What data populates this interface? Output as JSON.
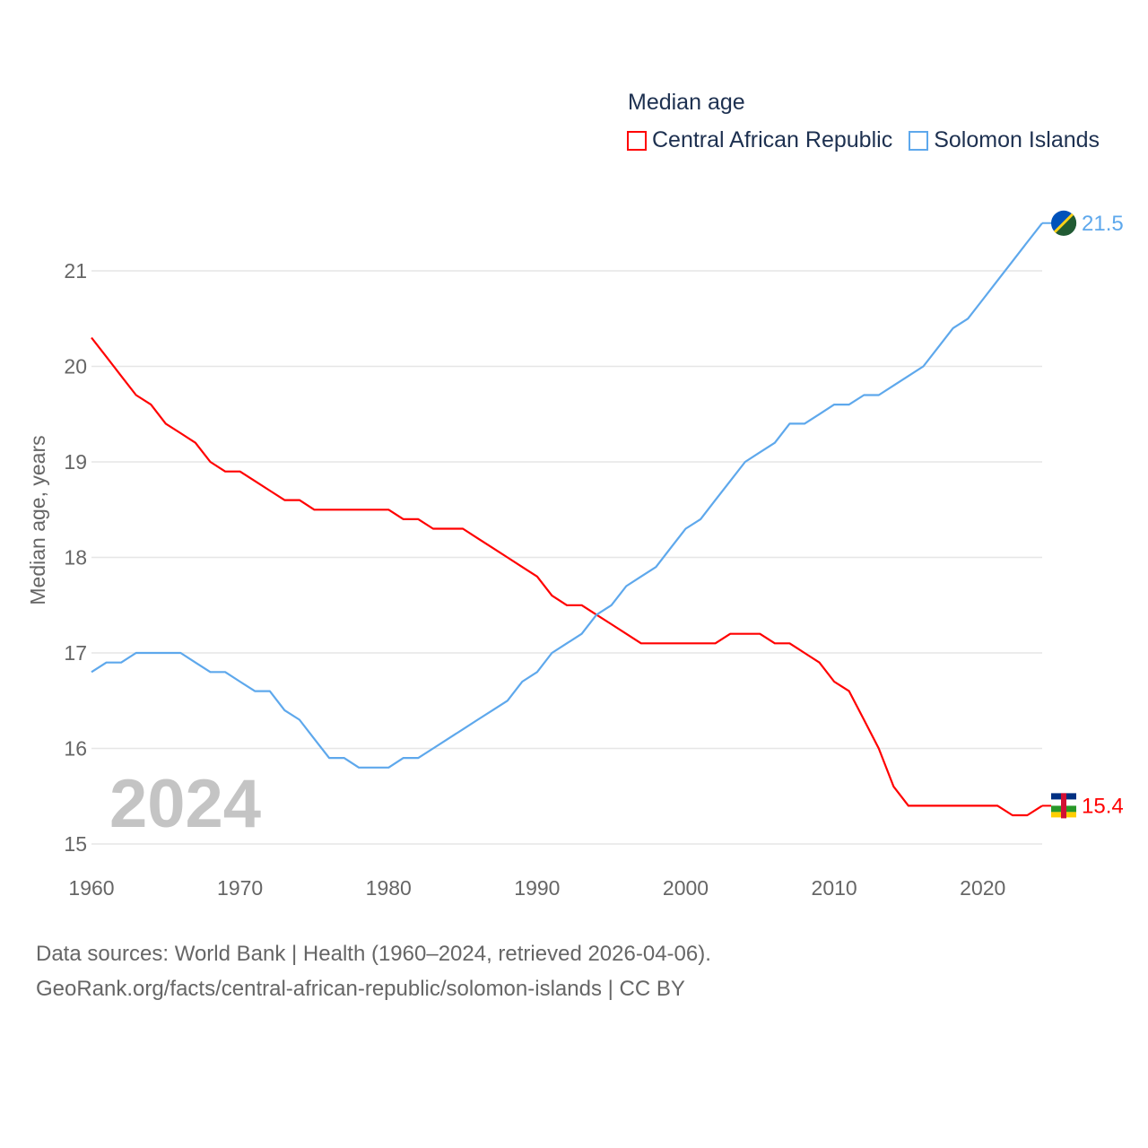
{
  "chart_data": {
    "type": "line",
    "title": "Median age",
    "xlabel": "",
    "ylabel": "Median age, years",
    "xlim": [
      1960,
      2024
    ],
    "ylim": [
      15,
      21.5
    ],
    "x_ticks": [
      "1960",
      "1970",
      "1980",
      "1990",
      "2000",
      "2010",
      "2020"
    ],
    "y_ticks": [
      "15",
      "16",
      "17",
      "18",
      "19",
      "20",
      "21"
    ],
    "grid": true,
    "legend_position": "top-right",
    "year_watermark": "2024",
    "x": [
      1960,
      1961,
      1962,
      1963,
      1964,
      1965,
      1966,
      1967,
      1968,
      1969,
      1970,
      1971,
      1972,
      1973,
      1974,
      1975,
      1976,
      1977,
      1978,
      1979,
      1980,
      1981,
      1982,
      1983,
      1984,
      1985,
      1986,
      1987,
      1988,
      1989,
      1990,
      1991,
      1992,
      1993,
      1994,
      1995,
      1996,
      1997,
      1998,
      1999,
      2000,
      2001,
      2002,
      2003,
      2004,
      2005,
      2006,
      2007,
      2008,
      2009,
      2010,
      2011,
      2012,
      2013,
      2014,
      2015,
      2016,
      2017,
      2018,
      2019,
      2020,
      2021,
      2022,
      2023,
      2024
    ],
    "series": [
      {
        "name": "Central African Republic",
        "color": "#ff0000",
        "end_label": "15.4",
        "values": [
          20.3,
          20.1,
          19.9,
          19.7,
          19.6,
          19.4,
          19.3,
          19.2,
          19.0,
          18.9,
          18.9,
          18.8,
          18.7,
          18.6,
          18.6,
          18.5,
          18.5,
          18.5,
          18.5,
          18.5,
          18.5,
          18.4,
          18.4,
          18.3,
          18.3,
          18.3,
          18.2,
          18.1,
          18.0,
          17.9,
          17.8,
          17.6,
          17.5,
          17.5,
          17.4,
          17.3,
          17.2,
          17.1,
          17.1,
          17.1,
          17.1,
          17.1,
          17.1,
          17.2,
          17.2,
          17.2,
          17.1,
          17.1,
          17.0,
          16.9,
          16.7,
          16.6,
          16.3,
          16.0,
          15.6,
          15.4,
          15.4,
          15.4,
          15.4,
          15.4,
          15.4,
          15.4,
          15.3,
          15.3,
          15.4
        ]
      },
      {
        "name": "Solomon Islands",
        "color": "#5ea8ec",
        "end_label": "21.5",
        "values": [
          16.8,
          16.9,
          16.9,
          17.0,
          17.0,
          17.0,
          17.0,
          16.9,
          16.8,
          16.8,
          16.7,
          16.6,
          16.6,
          16.4,
          16.3,
          16.1,
          15.9,
          15.9,
          15.8,
          15.8,
          15.8,
          15.9,
          15.9,
          16.0,
          16.1,
          16.2,
          16.3,
          16.4,
          16.5,
          16.7,
          16.8,
          17.0,
          17.1,
          17.2,
          17.4,
          17.5,
          17.7,
          17.8,
          17.9,
          18.1,
          18.3,
          18.4,
          18.6,
          18.8,
          19.0,
          19.1,
          19.2,
          19.4,
          19.4,
          19.5,
          19.6,
          19.6,
          19.7,
          19.7,
          19.8,
          19.9,
          20.0,
          20.2,
          20.4,
          20.5,
          20.7,
          20.9,
          21.1,
          21.3,
          21.5
        ]
      }
    ]
  },
  "footer": {
    "line1": "Data sources: World Bank | Health (1960–2024, retrieved 2026-04-06).",
    "line2": "GeoRank.org/facts/central-african-republic/solomon-islands | CC BY"
  }
}
